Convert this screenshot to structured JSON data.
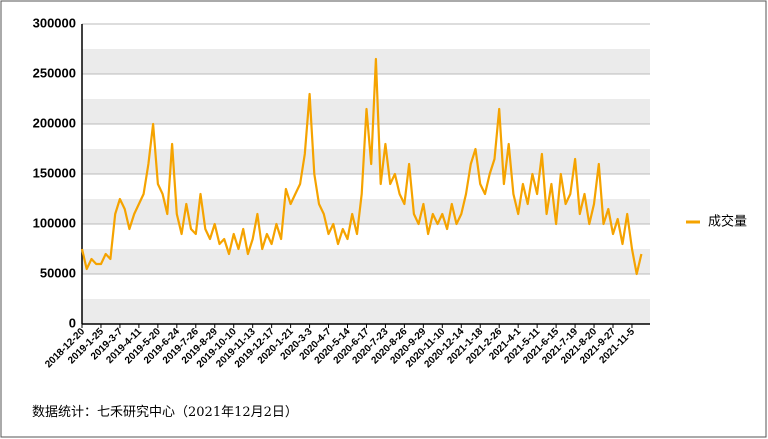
{
  "chart_data": {
    "type": "line",
    "annotation": "数据统计：七禾研究中心（2021年12月2日）",
    "categories": [
      "2018-12-20",
      null,
      null,
      null,
      "2019-1-25",
      null,
      null,
      null,
      "2019-3-7",
      null,
      null,
      null,
      "2019-4-11",
      null,
      null,
      null,
      "2019-5-20",
      null,
      null,
      null,
      "2019-6-24",
      null,
      null,
      null,
      "2019-7-26",
      null,
      null,
      null,
      "2019-8-29",
      null,
      null,
      null,
      "2019-10-10",
      null,
      null,
      null,
      "2019-11-13",
      null,
      null,
      null,
      "2019-12-17",
      null,
      null,
      null,
      "2020-1-21",
      null,
      null,
      null,
      "2020-3-3",
      null,
      null,
      null,
      "2020-4-7",
      null,
      null,
      null,
      "2020-5-14",
      null,
      null,
      null,
      "2020-6-17",
      null,
      null,
      null,
      "2020-7-23",
      null,
      null,
      null,
      "2020-8-26",
      null,
      null,
      null,
      "2020-9-29",
      null,
      null,
      null,
      "2020-11-10",
      null,
      null,
      null,
      "2020-12-14",
      null,
      null,
      null,
      "2021-1-18",
      null,
      null,
      null,
      "2021-2-26",
      null,
      null,
      null,
      "2021-4-1",
      null,
      null,
      null,
      "2021-5-11",
      null,
      null,
      null,
      "2021-6-15",
      null,
      null,
      null,
      "2021-7-19",
      null,
      null,
      null,
      "2021-8-20",
      null,
      null,
      null,
      "2021-9-27",
      null,
      null,
      null,
      "2021-11-5",
      null,
      null
    ],
    "series": [
      {
        "name": "成交量",
        "color": "#f5a300",
        "values": [
          75000,
          55000,
          65000,
          60000,
          60000,
          70000,
          65000,
          110000,
          125000,
          115000,
          95000,
          110000,
          120000,
          130000,
          160000,
          200000,
          140000,
          130000,
          110000,
          180000,
          110000,
          90000,
          120000,
          95000,
          90000,
          130000,
          95000,
          85000,
          100000,
          80000,
          85000,
          70000,
          90000,
          75000,
          95000,
          70000,
          85000,
          110000,
          75000,
          90000,
          80000,
          100000,
          85000,
          135000,
          120000,
          130000,
          140000,
          170000,
          230000,
          150000,
          120000,
          110000,
          90000,
          100000,
          80000,
          95000,
          85000,
          110000,
          90000,
          130000,
          215000,
          160000,
          265000,
          140000,
          180000,
          140000,
          150000,
          130000,
          120000,
          160000,
          110000,
          100000,
          120000,
          90000,
          110000,
          100000,
          110000,
          95000,
          120000,
          100000,
          110000,
          130000,
          160000,
          175000,
          140000,
          130000,
          150000,
          165000,
          215000,
          140000,
          180000,
          130000,
          110000,
          140000,
          120000,
          150000,
          130000,
          170000,
          110000,
          140000,
          100000,
          150000,
          120000,
          130000,
          165000,
          110000,
          130000,
          100000,
          120000,
          160000,
          100000,
          115000,
          90000,
          105000,
          80000,
          110000,
          75000,
          50000,
          70000
        ]
      }
    ],
    "ylim": [
      0,
      300000
    ],
    "yticks": [
      0,
      50000,
      100000,
      150000,
      200000,
      250000,
      300000
    ],
    "grid": true
  }
}
